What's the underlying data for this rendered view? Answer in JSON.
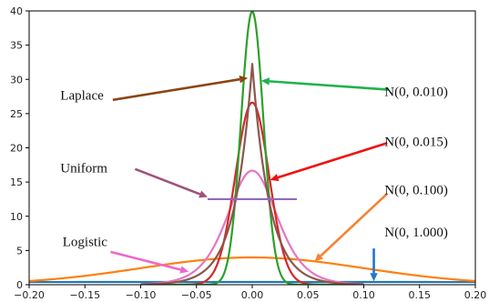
{
  "chart_data": {
    "type": "line",
    "xlim": [
      -0.2,
      0.2
    ],
    "ylim": [
      0,
      40
    ],
    "x_ticks": [
      -0.2,
      -0.15,
      -0.1,
      -0.05,
      0.0,
      0.05,
      0.1,
      0.15,
      0.2
    ],
    "x_tick_labels": [
      "−0.20",
      "−0.15",
      "−0.10",
      "−0.05",
      "0.00",
      "0.05",
      "0.10",
      "0.15",
      "0.20"
    ],
    "y_ticks": [
      0,
      5,
      10,
      15,
      20,
      25,
      30,
      35,
      40
    ],
    "y_tick_labels": [
      "0",
      "5",
      "10",
      "15",
      "20",
      "25",
      "30",
      "35",
      "40"
    ],
    "grid": false,
    "legend": "none",
    "series": [
      {
        "name": "N(0, 1.000)",
        "dist": "normal",
        "mu": 0,
        "sigma": 1.0,
        "color": "#1f77b4",
        "x_range": [
          -0.2,
          0.2
        ]
      },
      {
        "name": "N(0, 0.100)",
        "dist": "normal",
        "mu": 0,
        "sigma": 0.1,
        "color": "#ff7f0e",
        "x_range": [
          -0.2,
          0.2
        ]
      },
      {
        "name": "Logistic",
        "dist": "logistic",
        "mu": 0,
        "scale": 0.015,
        "color": "#e377c2",
        "x_range": [
          -0.1,
          0.1
        ]
      },
      {
        "name": "N(0, 0.015)",
        "dist": "normal",
        "mu": 0,
        "sigma": 0.015,
        "color": "#d62728",
        "x_range": [
          -0.1,
          0.1
        ]
      },
      {
        "name": "N(0, 0.010)",
        "dist": "normal",
        "mu": 0,
        "sigma": 0.01,
        "color": "#2ca02c",
        "x_range": [
          -0.1,
          0.1
        ]
      },
      {
        "name": "Laplace",
        "dist": "laplace",
        "mu": 0,
        "scale": 0.0155,
        "color": "#8c564b",
        "x_range": [
          -0.1,
          0.1
        ]
      },
      {
        "name": "Uniform",
        "dist": "uniform",
        "low": -0.04,
        "high": 0.04,
        "color": "#9467bd",
        "x_range": [
          -0.04,
          0.04
        ]
      }
    ],
    "annotations": [
      {
        "text": "Laplace",
        "color": "#8b4513",
        "text_x": -0.172,
        "text_y": 27.5,
        "anchor": "start",
        "from": [
          -0.125,
          27.0
        ],
        "to": [
          -0.004,
          30.2
        ]
      },
      {
        "text": "N(0, 0.010)",
        "color": "#22b14c",
        "text_x": 0.147,
        "text_y": 28.0,
        "anchor": "middle",
        "from": [
          0.122,
          28.5
        ],
        "to": [
          0.008,
          29.8
        ]
      },
      {
        "text": "N(0, 0.015)",
        "color": "#ee1111",
        "text_x": 0.147,
        "text_y": 20.7,
        "anchor": "middle",
        "from": [
          0.121,
          20.7
        ],
        "to": [
          0.016,
          15.3
        ]
      },
      {
        "text": "Uniform",
        "color": "#a0527a",
        "text_x": -0.172,
        "text_y": 16.9,
        "anchor": "start",
        "from": [
          -0.105,
          16.9
        ],
        "to": [
          -0.04,
          12.8
        ]
      },
      {
        "text": "N(0, 0.100)",
        "color": "#f58231",
        "text_x": 0.147,
        "text_y": 13.7,
        "anchor": "middle",
        "from": [
          0.121,
          13.3
        ],
        "to": [
          0.056,
          3.4
        ]
      },
      {
        "text": "Logistic",
        "color": "#ee66c9",
        "text_x": -0.17,
        "text_y": 6.1,
        "anchor": "start",
        "from": [
          -0.127,
          4.8
        ],
        "to": [
          -0.057,
          1.9
        ]
      },
      {
        "text": "N(0, 1.000)",
        "color": "#1f77cc",
        "text_x": 0.147,
        "text_y": 7.5,
        "anchor": "middle",
        "from": [
          0.109,
          5.3
        ],
        "to": [
          0.109,
          0.5
        ]
      }
    ]
  }
}
